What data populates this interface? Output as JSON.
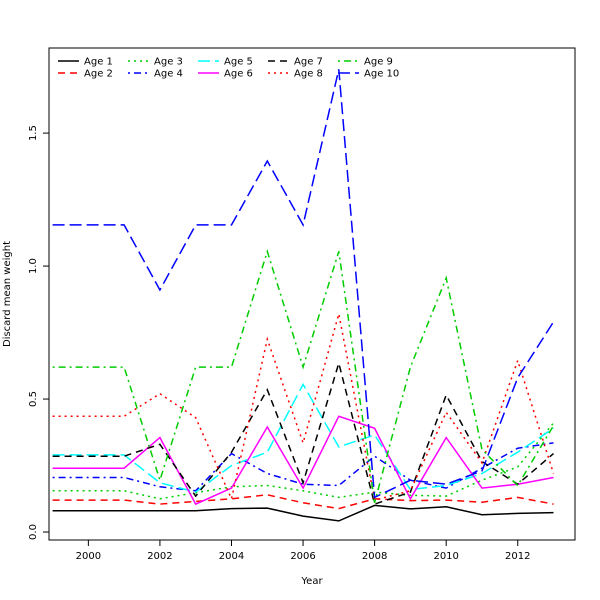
{
  "chart_data": {
    "type": "line",
    "title": "",
    "xlabel": "Year",
    "ylabel": "Discard mean weight",
    "xlim": [
      1998.9,
      2013.6
    ],
    "ylim": [
      -0.03,
      1.82
    ],
    "x_ticks": [
      2000,
      2002,
      2004,
      2006,
      2008,
      2010,
      2012
    ],
    "y_ticks": [
      0.0,
      0.5,
      1.0,
      1.5
    ],
    "y_tick_labels": [
      "0.0",
      "0.5",
      "1.0",
      "1.5"
    ],
    "grid": false,
    "legend_position": "top-left",
    "x": [
      1999,
      2000,
      2001,
      2002,
      2003,
      2004,
      2005,
      2006,
      2007,
      2008,
      2009,
      2010,
      2011,
      2012,
      2013
    ],
    "series": [
      {
        "name": "Age 1",
        "color": "#000000",
        "dash": "solid",
        "values": [
          0.08,
          0.08,
          0.08,
          0.08,
          0.08,
          0.088,
          0.09,
          0.06,
          0.042,
          0.1,
          0.087,
          0.095,
          0.065,
          0.07,
          0.073
        ]
      },
      {
        "name": "Age 2",
        "color": "#ff0000",
        "dash": "dashed",
        "values": [
          0.12,
          0.12,
          0.12,
          0.105,
          0.115,
          0.125,
          0.14,
          0.11,
          0.088,
          0.125,
          0.118,
          0.12,
          0.112,
          0.13,
          0.105
        ]
      },
      {
        "name": "Age 3",
        "color": "#00cd00",
        "dash": "dotted",
        "values": [
          0.155,
          0.155,
          0.155,
          0.125,
          0.148,
          0.17,
          0.175,
          0.155,
          0.13,
          0.15,
          0.138,
          0.135,
          0.195,
          0.245,
          0.41
        ]
      },
      {
        "name": "Age 4",
        "color": "#0000ff",
        "dash": "dotdash",
        "values": [
          0.205,
          0.205,
          0.205,
          0.17,
          0.155,
          0.295,
          0.22,
          0.18,
          0.175,
          0.285,
          0.195,
          0.165,
          0.24,
          0.315,
          0.335
        ]
      },
      {
        "name": "Age 5",
        "color": "#00ffff",
        "dash": "longdash",
        "values": [
          0.29,
          0.29,
          0.29,
          0.185,
          0.15,
          0.25,
          0.3,
          0.555,
          0.32,
          0.365,
          0.16,
          0.175,
          0.22,
          0.3,
          0.39
        ]
      },
      {
        "name": "Age 6",
        "color": "#ff00ff",
        "dash": "solid",
        "values": [
          0.24,
          0.24,
          0.24,
          0.355,
          0.105,
          0.165,
          0.395,
          0.165,
          0.435,
          0.39,
          0.125,
          0.355,
          0.165,
          0.18,
          0.205
        ]
      },
      {
        "name": "Age 7",
        "color": "#000000",
        "dash": "dashed",
        "values": [
          0.285,
          0.285,
          0.285,
          0.33,
          0.135,
          0.3,
          0.535,
          0.185,
          0.635,
          0.105,
          0.15,
          0.515,
          0.265,
          0.18,
          0.295
        ]
      },
      {
        "name": "Age 8",
        "color": "#ff0000",
        "dash": "dotted",
        "values": [
          0.435,
          0.435,
          0.435,
          0.52,
          0.43,
          0.125,
          0.725,
          0.335,
          0.82,
          0.12,
          0.155,
          0.45,
          0.26,
          0.645,
          0.22
        ]
      },
      {
        "name": "Age 9",
        "color": "#00cd00",
        "dash": "dotdash",
        "values": [
          0.62,
          0.62,
          0.62,
          0.195,
          0.62,
          0.62,
          1.055,
          0.62,
          1.055,
          0.11,
          0.62,
          0.955,
          0.31,
          0.175,
          0.4
        ]
      },
      {
        "name": "Age 10",
        "color": "#0000ff",
        "dash": "longdash",
        "values": [
          1.155,
          1.155,
          1.155,
          0.91,
          1.155,
          1.155,
          1.395,
          1.155,
          1.74,
          0.13,
          0.195,
          0.18,
          0.23,
          0.58,
          0.79
        ]
      }
    ]
  }
}
